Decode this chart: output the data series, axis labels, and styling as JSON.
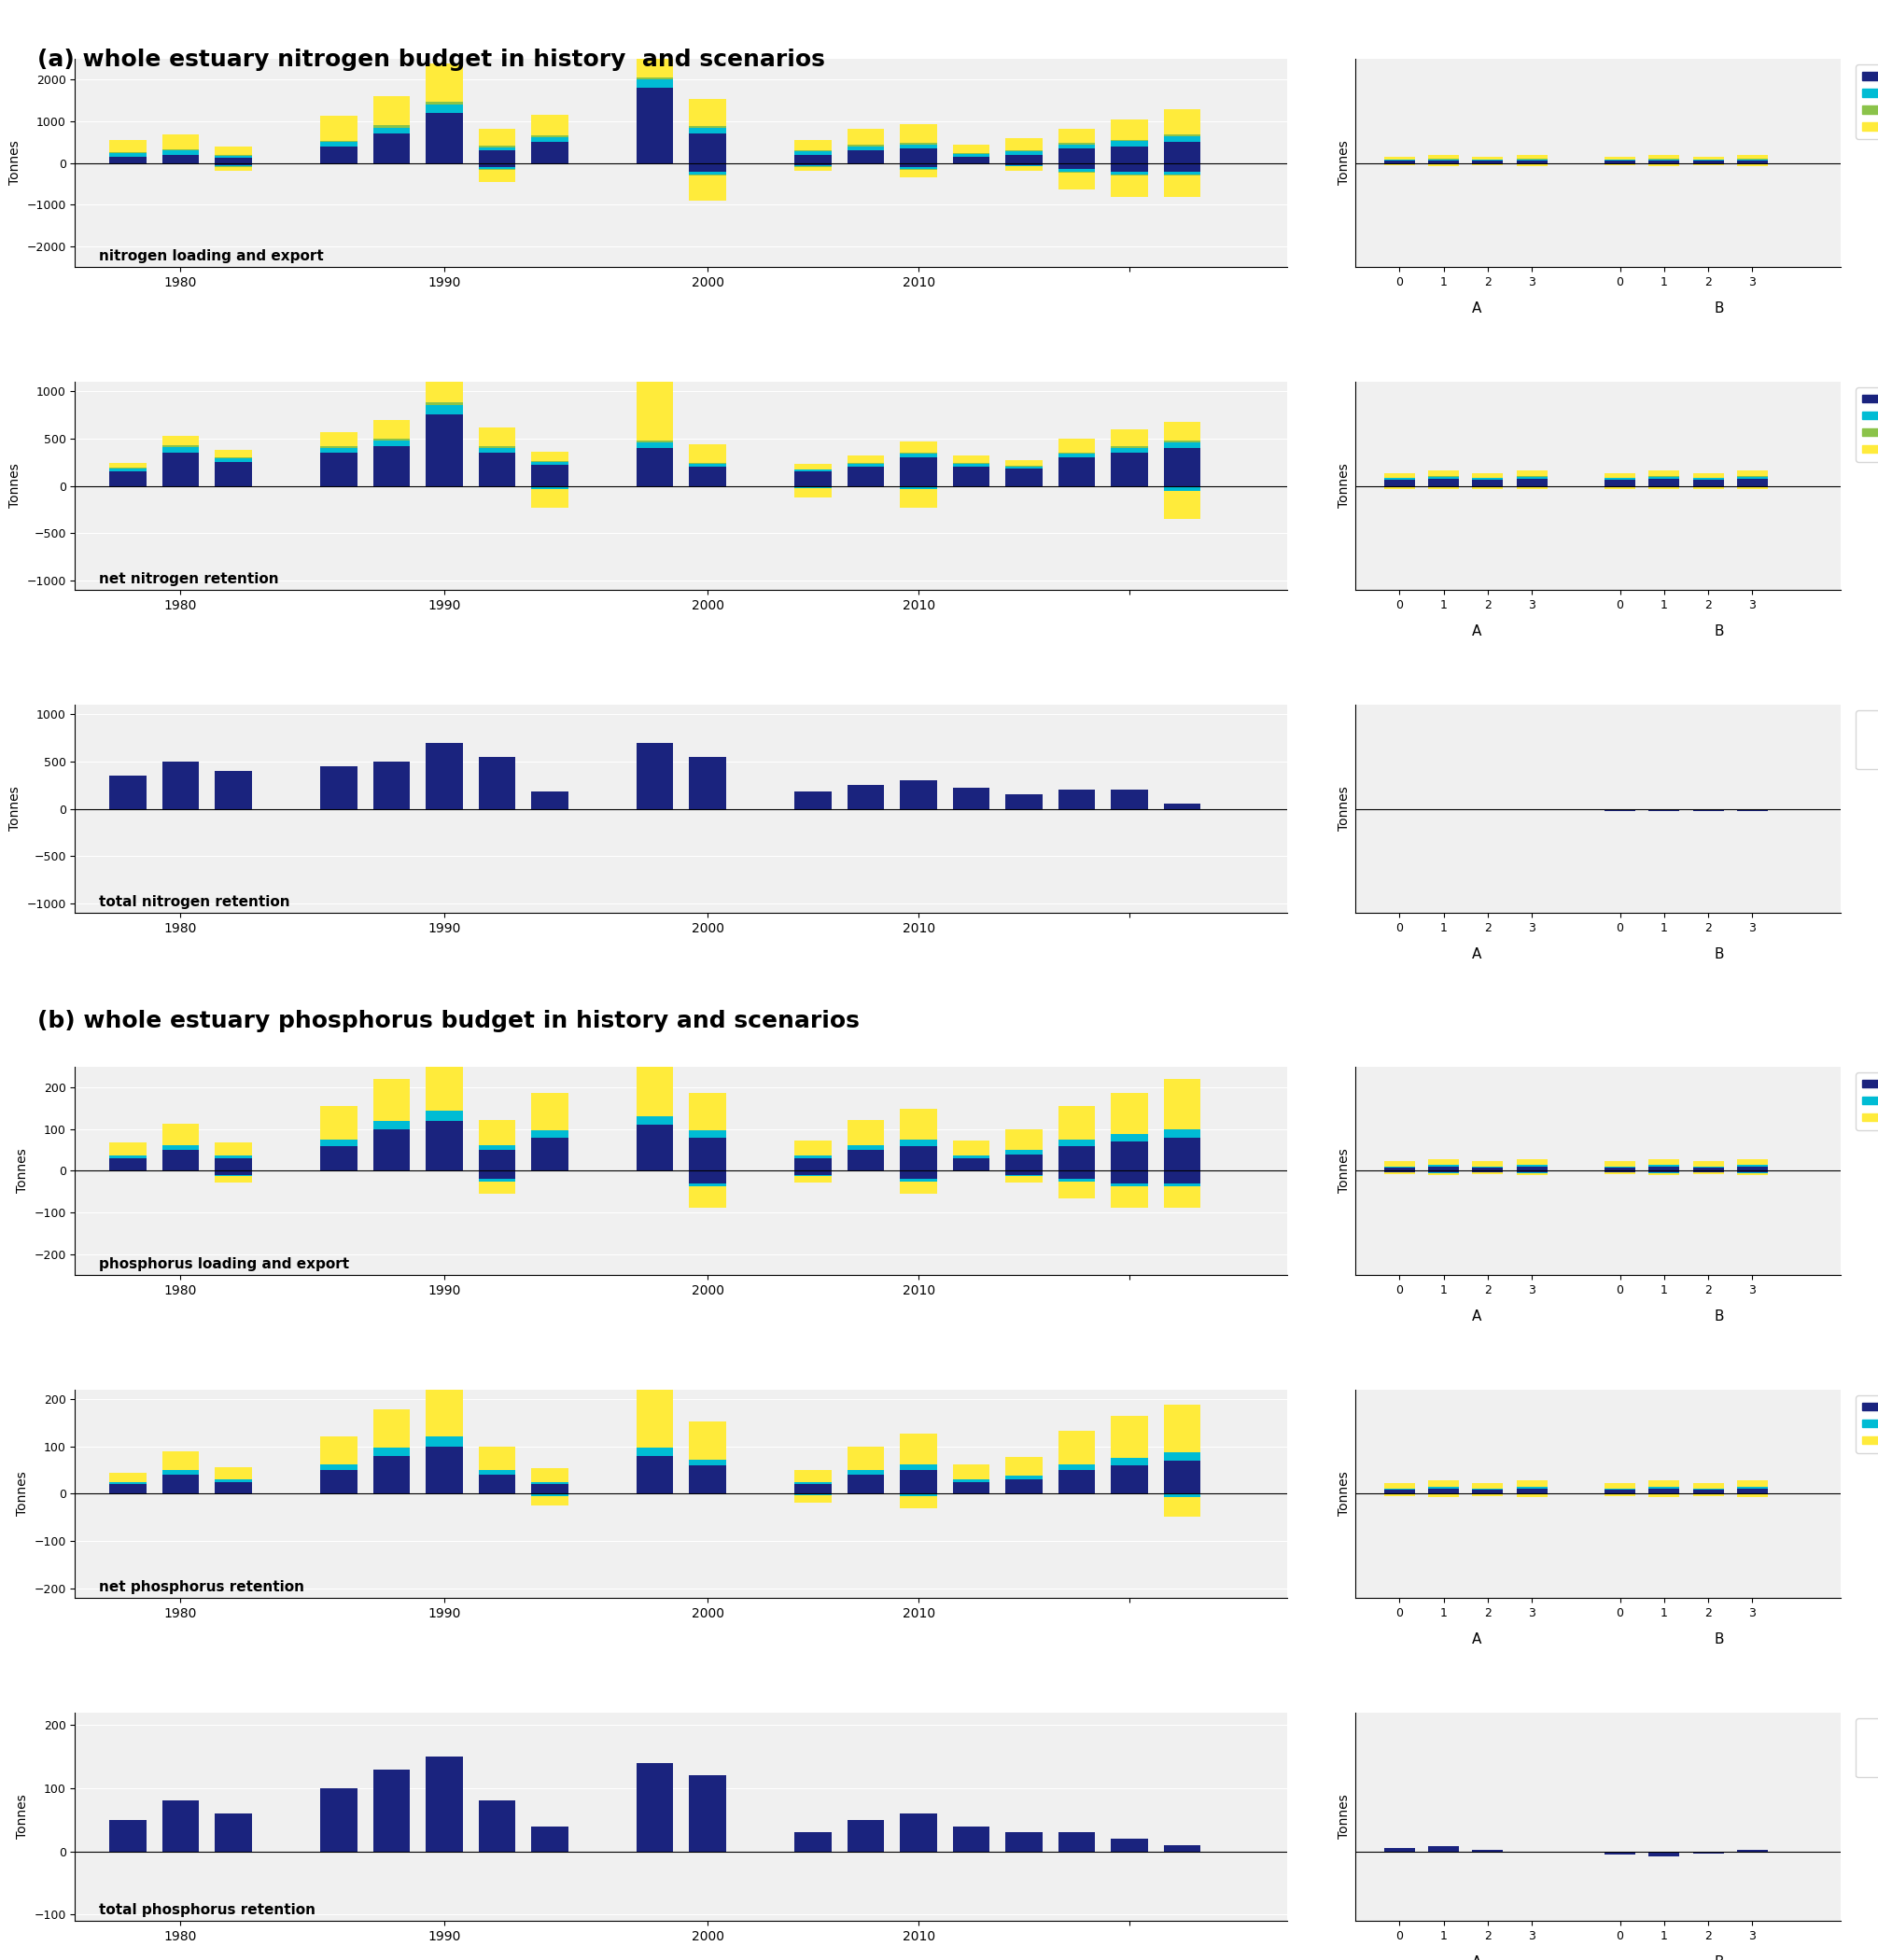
{
  "title_a": "(a) whole estuary nitrogen budget in history  and scenarios",
  "title_b": "(b) whole estuary phosphorus budget in history and scenarios",
  "colors": {
    "PON": "#1a237e",
    "DON": "#00bcd4",
    "Amm": "#8bc34a",
    "Nit": "#ffeb3b",
    "POP": "#1a237e",
    "DOP": "#00bcd4",
    "FRP": "#ffeb3b"
  },
  "hist_years": [
    1979,
    1980,
    1981,
    1985,
    1988,
    1989,
    1990,
    1991,
    1996,
    1997,
    2005,
    2007,
    2009,
    2010,
    2011,
    2012,
    2013,
    2014
  ],
  "N_load": {
    "hist_PON": [
      150,
      200,
      120,
      400,
      700,
      1200,
      300,
      500,
      1800,
      700,
      200,
      300,
      350,
      150,
      200,
      350,
      400,
      500
    ],
    "hist_DON": [
      80,
      100,
      60,
      100,
      150,
      200,
      80,
      120,
      200,
      150,
      80,
      100,
      100,
      60,
      80,
      100,
      120,
      150
    ],
    "hist_Amm": [
      20,
      30,
      15,
      30,
      50,
      80,
      30,
      40,
      60,
      40,
      20,
      30,
      30,
      20,
      25,
      30,
      35,
      40
    ],
    "hist_Nit": [
      300,
      350,
      200,
      600,
      700,
      900,
      400,
      500,
      2050,
      650,
      250,
      400,
      450,
      200,
      300,
      350,
      500,
      600
    ],
    "hist_PON_neg": [
      0,
      0,
      -50,
      0,
      0,
      0,
      -100,
      0,
      0,
      -200,
      -50,
      0,
      -100,
      0,
      -50,
      -150,
      -200,
      -200
    ],
    "hist_DON_neg": [
      0,
      0,
      -30,
      0,
      0,
      0,
      -40,
      0,
      0,
      -80,
      -30,
      0,
      -40,
      0,
      -20,
      -60,
      -80,
      -80
    ],
    "hist_Amm_neg": [
      0,
      0,
      -10,
      0,
      0,
      0,
      -15,
      0,
      0,
      -30,
      -10,
      0,
      -15,
      0,
      -8,
      -20,
      -30,
      -30
    ],
    "hist_Nit_neg": [
      0,
      0,
      -100,
      0,
      0,
      0,
      -300,
      0,
      0,
      -600,
      -100,
      0,
      -200,
      0,
      -100,
      -400,
      -500,
      -500
    ]
  },
  "N_net_ret": {
    "hist_PON": [
      150,
      350,
      250,
      350,
      420,
      750,
      350,
      220,
      400,
      200,
      150,
      200,
      300,
      200,
      180,
      300,
      350,
      400
    ],
    "hist_DON": [
      30,
      60,
      40,
      50,
      60,
      100,
      50,
      30,
      60,
      30,
      20,
      30,
      40,
      30,
      25,
      40,
      50,
      60
    ],
    "hist_Amm": [
      10,
      20,
      15,
      15,
      20,
      30,
      20,
      10,
      20,
      10,
      8,
      10,
      12,
      10,
      8,
      12,
      15,
      20
    ],
    "hist_Nit": [
      50,
      100,
      80,
      150,
      200,
      300,
      200,
      100,
      900,
      200,
      50,
      80,
      120,
      80,
      60,
      150,
      180,
      200
    ],
    "hist_DON_neg": [
      0,
      0,
      0,
      0,
      0,
      0,
      0,
      -30,
      0,
      0,
      -20,
      0,
      -30,
      0,
      0,
      0,
      0,
      -50
    ],
    "hist_Nit_neg": [
      0,
      0,
      0,
      0,
      0,
      0,
      0,
      -200,
      0,
      0,
      -100,
      0,
      -200,
      0,
      0,
      0,
      0,
      -300
    ]
  },
  "N_tot_ret": {
    "hist": [
      350,
      500,
      400,
      450,
      500,
      700,
      550,
      180,
      700,
      550,
      180,
      250,
      300,
      220,
      150,
      200,
      200,
      50
    ]
  },
  "N_load_scen": {
    "A_PON": [
      50,
      60,
      50,
      60
    ],
    "A_DON": [
      20,
      25,
      20,
      25
    ],
    "A_Amm": [
      8,
      10,
      8,
      10
    ],
    "A_Nit": [
      80,
      90,
      80,
      90
    ],
    "A_PON_neg": [
      -20,
      -25,
      -20,
      -25
    ],
    "A_DON_neg": [
      -8,
      -10,
      -8,
      -10
    ],
    "A_Amm_neg": [
      -3,
      -4,
      -3,
      -4
    ],
    "A_Nit_neg": [
      -30,
      -35,
      -30,
      -35
    ],
    "B_PON": [
      50,
      60,
      50,
      60
    ],
    "B_DON": [
      20,
      25,
      20,
      25
    ],
    "B_Amm": [
      8,
      10,
      8,
      10
    ],
    "B_Nit": [
      80,
      90,
      80,
      90
    ],
    "B_PON_neg": [
      -20,
      -25,
      -20,
      -25
    ],
    "B_DON_neg": [
      -8,
      -10,
      -8,
      -10
    ],
    "B_Amm_neg": [
      -3,
      -4,
      -3,
      -4
    ],
    "B_Nit_neg": [
      -30,
      -35,
      -30,
      -35
    ]
  },
  "N_net_ret_scen": {
    "A_PON": [
      60,
      70,
      60,
      70
    ],
    "A_DON": [
      20,
      25,
      20,
      25
    ],
    "A_Amm": [
      8,
      10,
      8,
      10
    ],
    "A_Nit": [
      50,
      60,
      50,
      60
    ],
    "A_DON_neg": [
      -10,
      -12,
      -10,
      -12
    ],
    "A_Nit_neg": [
      -20,
      -25,
      -20,
      -25
    ],
    "B_PON": [
      60,
      70,
      60,
      70
    ],
    "B_DON": [
      20,
      25,
      20,
      25
    ],
    "B_Amm": [
      8,
      10,
      8,
      10
    ],
    "B_Nit": [
      50,
      60,
      50,
      60
    ],
    "B_DON_neg": [
      -10,
      -12,
      -10,
      -12
    ],
    "B_Nit_neg": [
      -20,
      -25,
      -20,
      -25
    ]
  },
  "N_tot_ret_scen": {
    "A": [
      -10,
      -15,
      -10,
      -15
    ],
    "B": [
      -20,
      -25,
      -20,
      -25
    ]
  },
  "P_load": {
    "hist_POP": [
      30,
      50,
      30,
      60,
      100,
      120,
      50,
      80,
      110,
      80,
      30,
      50,
      60,
      30,
      40,
      60,
      70,
      80
    ],
    "hist_DOP": [
      8,
      12,
      8,
      15,
      20,
      25,
      12,
      18,
      22,
      18,
      8,
      12,
      15,
      8,
      10,
      15,
      18,
      20
    ],
    "hist_FRP": [
      30,
      50,
      30,
      80,
      100,
      130,
      60,
      90,
      140,
      90,
      35,
      60,
      75,
      35,
      50,
      80,
      100,
      120
    ],
    "hist_POP_neg": [
      0,
      0,
      -10,
      0,
      0,
      0,
      -20,
      0,
      0,
      -30,
      -10,
      0,
      -20,
      0,
      -10,
      -20,
      -30,
      -30
    ],
    "hist_DOP_neg": [
      0,
      0,
      -3,
      0,
      0,
      0,
      -5,
      0,
      0,
      -8,
      -3,
      0,
      -5,
      0,
      -3,
      -6,
      -8,
      -8
    ],
    "hist_FRP_neg": [
      0,
      0,
      -15,
      0,
      0,
      0,
      -30,
      0,
      0,
      -50,
      -15,
      0,
      -30,
      0,
      -15,
      -40,
      -50,
      -50
    ]
  },
  "P_net_ret": {
    "hist_POP": [
      20,
      40,
      25,
      50,
      80,
      100,
      40,
      20,
      80,
      60,
      20,
      40,
      50,
      25,
      30,
      50,
      60,
      70
    ],
    "hist_DOP": [
      5,
      10,
      6,
      12,
      18,
      22,
      10,
      5,
      18,
      12,
      5,
      10,
      12,
      6,
      8,
      12,
      15,
      18
    ],
    "hist_FRP": [
      20,
      40,
      25,
      60,
      80,
      120,
      50,
      30,
      130,
      80,
      25,
      50,
      65,
      30,
      40,
      70,
      90,
      100
    ],
    "hist_DOP_neg": [
      0,
      0,
      0,
      0,
      0,
      0,
      0,
      -5,
      0,
      0,
      -3,
      0,
      -5,
      0,
      0,
      0,
      0,
      -8
    ],
    "hist_FRP_neg": [
      0,
      0,
      0,
      0,
      0,
      0,
      0,
      -20,
      0,
      0,
      -15,
      0,
      -25,
      0,
      0,
      0,
      0,
      -40
    ]
  },
  "P_tot_ret": {
    "hist": [
      50,
      80,
      60,
      100,
      130,
      150,
      80,
      40,
      140,
      120,
      30,
      50,
      60,
      40,
      30,
      30,
      20,
      10
    ]
  },
  "P_load_scen": {
    "A_POP": [
      8,
      10,
      8,
      10
    ],
    "A_DOP": [
      3,
      4,
      3,
      4
    ],
    "A_FRP": [
      12,
      15,
      12,
      15
    ],
    "A_POP_neg": [
      -3,
      -4,
      -3,
      -4
    ],
    "A_DOP_neg": [
      -1,
      -1,
      -1,
      -1
    ],
    "A_FRP_neg": [
      -5,
      -6,
      -5,
      -6
    ],
    "B_POP": [
      8,
      10,
      8,
      10
    ],
    "B_DOP": [
      3,
      4,
      3,
      4
    ],
    "B_FRP": [
      12,
      15,
      12,
      15
    ],
    "B_POP_neg": [
      -3,
      -4,
      -3,
      -4
    ],
    "B_DOP_neg": [
      -1,
      -1,
      -1,
      -1
    ],
    "B_FRP_neg": [
      -5,
      -6,
      -5,
      -6
    ]
  },
  "P_net_ret_scen": {
    "A_POP": [
      8,
      10,
      8,
      10
    ],
    "A_DOP": [
      3,
      4,
      3,
      4
    ],
    "A_FRP": [
      12,
      15,
      12,
      15
    ],
    "A_DOP_neg": [
      -1,
      -1,
      -1,
      -1
    ],
    "A_FRP_neg": [
      -5,
      -6,
      -5,
      -6
    ],
    "B_POP": [
      8,
      10,
      8,
      10
    ],
    "B_DOP": [
      3,
      4,
      3,
      4
    ],
    "B_FRP": [
      12,
      15,
      12,
      15
    ],
    "B_DOP_neg": [
      -1,
      -1,
      -1,
      -1
    ],
    "B_FRP_neg": [
      -5,
      -6,
      -5,
      -6
    ]
  },
  "P_tot_ret_scen": {
    "A": [
      5,
      8,
      3,
      -2
    ],
    "B": [
      -5,
      -8,
      -3,
      2
    ]
  }
}
